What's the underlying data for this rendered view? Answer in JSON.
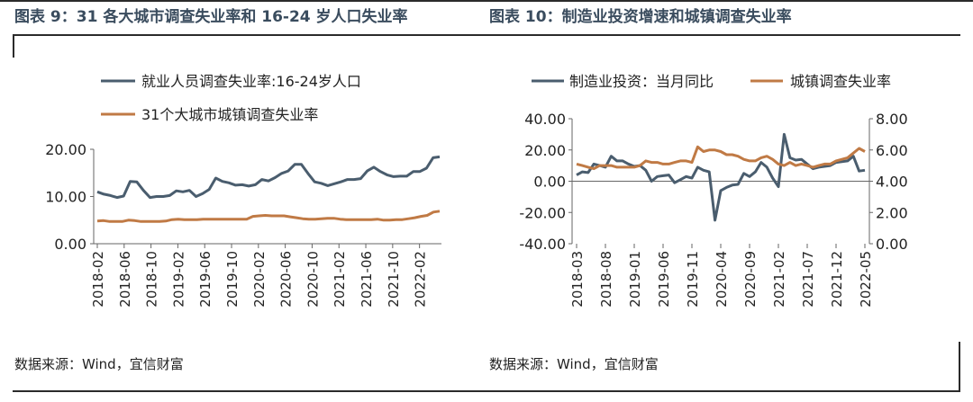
{
  "panels": {
    "left": {
      "title": "图表 9：31 各大城市调查失业率和 16-24 岁人口失业率",
      "source": "数据来源：Wind，宜信财富"
    },
    "right": {
      "title": "图表 10：制造业投资增速和城镇调查失业率",
      "source": "数据来源：Wind，宜信财富"
    }
  },
  "chart_data": [
    {
      "type": "line",
      "title": "",
      "xlabel": "",
      "ylabel": "",
      "ylim": [
        0,
        20
      ],
      "yticks": [
        "0.00",
        "10.00",
        "20.00"
      ],
      "xticks": [
        "2018-02",
        "2018-06",
        "2018-10",
        "2019-02",
        "2019-06",
        "2019-10",
        "2020-02",
        "2020-06",
        "2020-10",
        "2021-02",
        "2021-06",
        "2021-10",
        "2022-02"
      ],
      "x_start": "2018-02",
      "x_end": "2022-05",
      "legend_position": "top-left",
      "series": [
        {
          "name": "就业人员调查失业率:16-24岁人口",
          "color": "#4a5d6e",
          "values": [
            11.0,
            10.5,
            10.2,
            9.8,
            10.1,
            13.2,
            13.1,
            11.3,
            9.8,
            10.0,
            10.0,
            10.2,
            11.2,
            11.0,
            11.3,
            10.0,
            10.6,
            11.5,
            13.9,
            13.2,
            12.9,
            12.4,
            12.5,
            12.2,
            12.5,
            13.6,
            13.3,
            14.0,
            14.9,
            15.4,
            16.8,
            16.8,
            14.9,
            13.1,
            12.8,
            12.3,
            12.7,
            13.1,
            13.6,
            13.6,
            13.8,
            15.4,
            16.2,
            15.3,
            14.6,
            14.2,
            14.3,
            14.3,
            15.3,
            15.3,
            16.0,
            18.2,
            18.4
          ]
        },
        {
          "name": "31个大城市城镇调查失业率",
          "color": "#c07a45",
          "values": [
            4.8,
            4.9,
            4.7,
            4.7,
            4.7,
            5.0,
            4.9,
            4.7,
            4.7,
            4.7,
            4.7,
            4.8,
            5.1,
            5.2,
            5.1,
            5.1,
            5.1,
            5.2,
            5.2,
            5.2,
            5.2,
            5.2,
            5.2,
            5.2,
            5.2,
            5.8,
            5.9,
            6.0,
            5.9,
            5.9,
            5.9,
            5.7,
            5.5,
            5.3,
            5.2,
            5.2,
            5.3,
            5.4,
            5.4,
            5.2,
            5.1,
            5.1,
            5.1,
            5.1,
            5.1,
            5.2,
            5.0,
            5.0,
            5.1,
            5.1,
            5.3,
            5.5,
            5.8,
            6.0,
            6.7,
            6.9
          ]
        }
      ]
    },
    {
      "type": "line",
      "title": "",
      "xlabel": "",
      "ylabel": "",
      "ylim": [
        -40,
        40
      ],
      "y2lim": [
        0,
        8
      ],
      "yticks": [
        "-40.00",
        "-20.00",
        "0.00",
        "20.00",
        "40.00"
      ],
      "y2ticks": [
        "0.00",
        "2.00",
        "4.00",
        "6.00",
        "8.00"
      ],
      "xticks": [
        "2018-03",
        "2018-08",
        "2019-01",
        "2019-06",
        "2019-11",
        "2020-04",
        "2020-09",
        "2021-02",
        "2021-07",
        "2021-12",
        "2022-05"
      ],
      "x_start": "2018-03",
      "x_end": "2022-05",
      "legend_position": "top",
      "series": [
        {
          "name": "制造业投资：当月同比",
          "color": "#4a5d6e",
          "axis": "left",
          "values": [
            4.0,
            6.0,
            5.5,
            11.0,
            10.0,
            9.0,
            16.0,
            13.0,
            13.0,
            11.0,
            9.5,
            10.0,
            7.0,
            0.0,
            3.0,
            3.5,
            4.0,
            -1.0,
            1.0,
            3.0,
            2.0,
            9.0,
            7.0,
            6.0,
            -25.0,
            -6.0,
            -4.0,
            -2.5,
            -2.0,
            5.0,
            3.0,
            6.0,
            12.0,
            9.0,
            2.0,
            -3.5,
            30.0,
            15.0,
            13.5,
            14.0,
            11.0,
            8.0,
            9.0,
            9.5,
            10.0,
            12.0,
            12.5,
            13.0,
            16.0,
            6.5,
            7.0
          ]
        },
        {
          "name": "城镇调查失业率",
          "color": "#c07a45",
          "axis": "right",
          "values": [
            5.1,
            5.0,
            4.9,
            4.8,
            5.0,
            5.0,
            5.0,
            4.9,
            4.9,
            4.9,
            4.9,
            5.0,
            5.3,
            5.2,
            5.2,
            5.1,
            5.1,
            5.2,
            5.3,
            5.3,
            5.2,
            6.2,
            5.9,
            6.0,
            6.0,
            5.9,
            5.7,
            5.7,
            5.6,
            5.4,
            5.3,
            5.3,
            5.5,
            5.6,
            5.4,
            5.1,
            5.0,
            5.2,
            5.0,
            5.1,
            5.0,
            4.9,
            5.0,
            5.1,
            5.1,
            5.3,
            5.4,
            5.5,
            5.8,
            6.1,
            5.9
          ]
        }
      ]
    }
  ]
}
